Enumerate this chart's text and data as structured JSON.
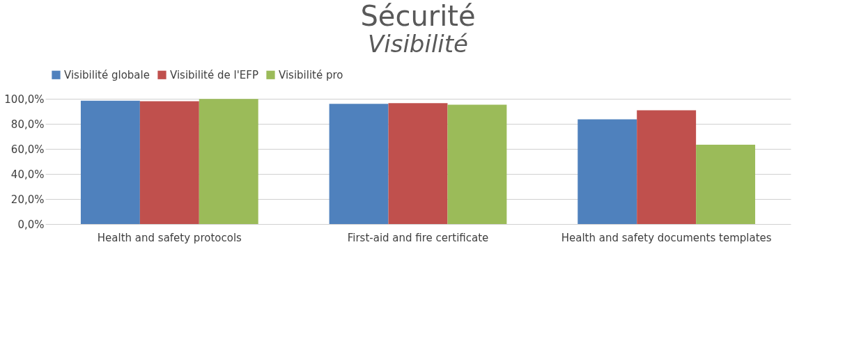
{
  "chart_data": {
    "type": "bar",
    "title": "Sécurité",
    "subtitle": "Visibilité",
    "categories": [
      "Health and safety protocols",
      "First-aid and fire certificate",
      "Health and safety documents templates"
    ],
    "series": [
      {
        "name": "Visibilité globale",
        "color": "#4f81bd",
        "values": [
          98.5,
          96.0,
          83.6
        ]
      },
      {
        "name": "Visibilité de l'EFP",
        "color": "#c0504d",
        "values": [
          98.0,
          96.5,
          90.8
        ]
      },
      {
        "name": "Visibilité pro",
        "color": "#9bbb59",
        "values": [
          99.8,
          95.3,
          63.3
        ]
      }
    ],
    "ylim": [
      0,
      100
    ],
    "yticks": [
      {
        "value": 0,
        "label": "0,0%"
      },
      {
        "value": 20,
        "label": "20,0%"
      },
      {
        "value": 40,
        "label": "40,0%"
      },
      {
        "value": 60,
        "label": "60,0%"
      },
      {
        "value": 80,
        "label": "80,0%"
      },
      {
        "value": 100,
        "label": "100,0%"
      }
    ],
    "grid": "y",
    "legend": "top"
  }
}
